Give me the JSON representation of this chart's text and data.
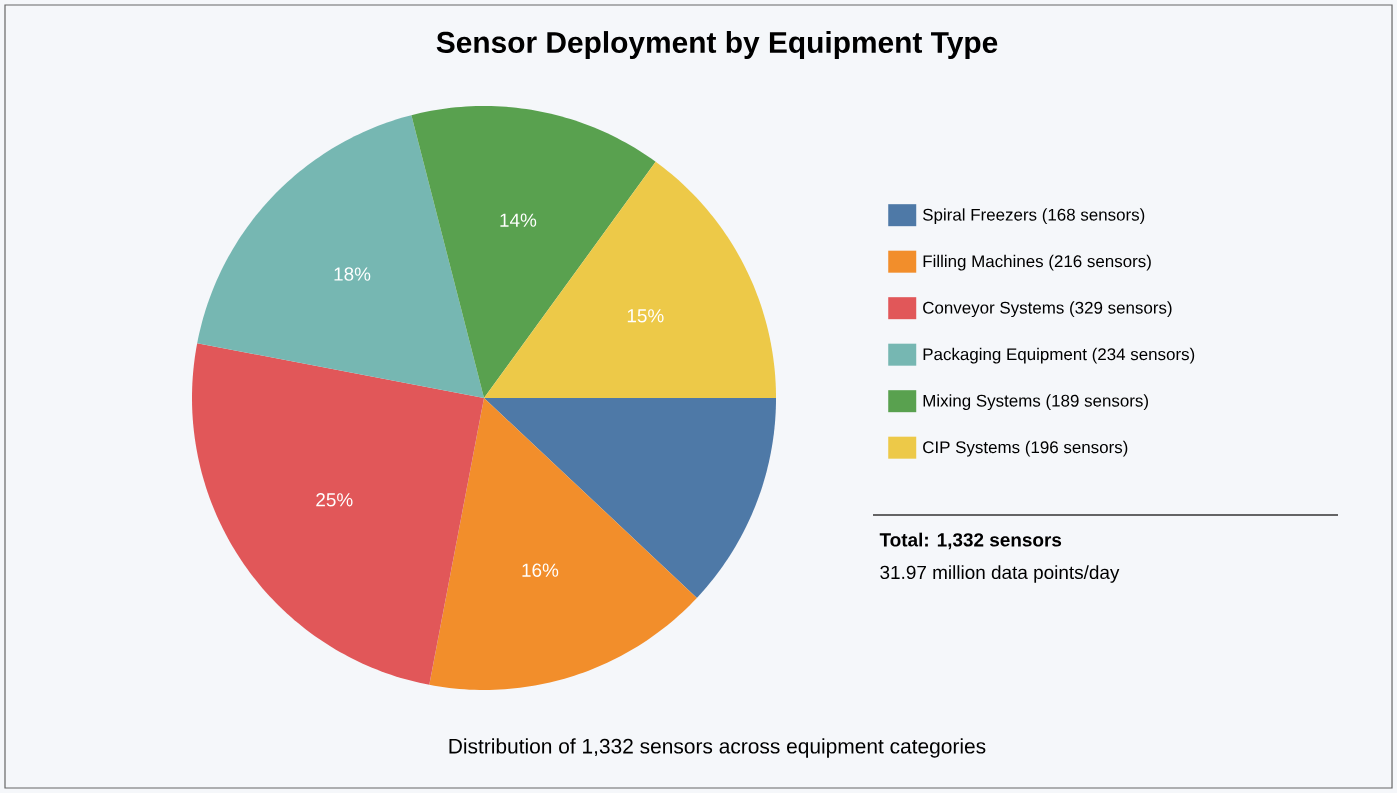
{
  "chart_data": {
    "type": "pie",
    "title": "Sensor Deployment by Equipment Type",
    "categories": [
      "Spiral Freezers (168 sensors)",
      "Filling Machines (216 sensors)",
      "Conveyor Systems (329 sensors)",
      "Packaging Equipment (234 sensors)",
      "Mixing Systems (189 sensors)",
      "CIP Systems (196 sensors)"
    ],
    "values": [
      12,
      16,
      25,
      18,
      14,
      15
    ],
    "colors": [
      "#4e79a7",
      "#f28e2b",
      "#e15759",
      "#76b7b2",
      "#59a14f",
      "#edc948"
    ],
    "value_labels": [
      null,
      "16%",
      "25%",
      "18%",
      "14%",
      "15%"
    ],
    "legend": "right",
    "annotations": [
      "**Total: 1,332 sensors**",
      "31.97 million data points/day",
      "Distribution of 1,332 sensors across equipment categories"
    ]
  }
}
